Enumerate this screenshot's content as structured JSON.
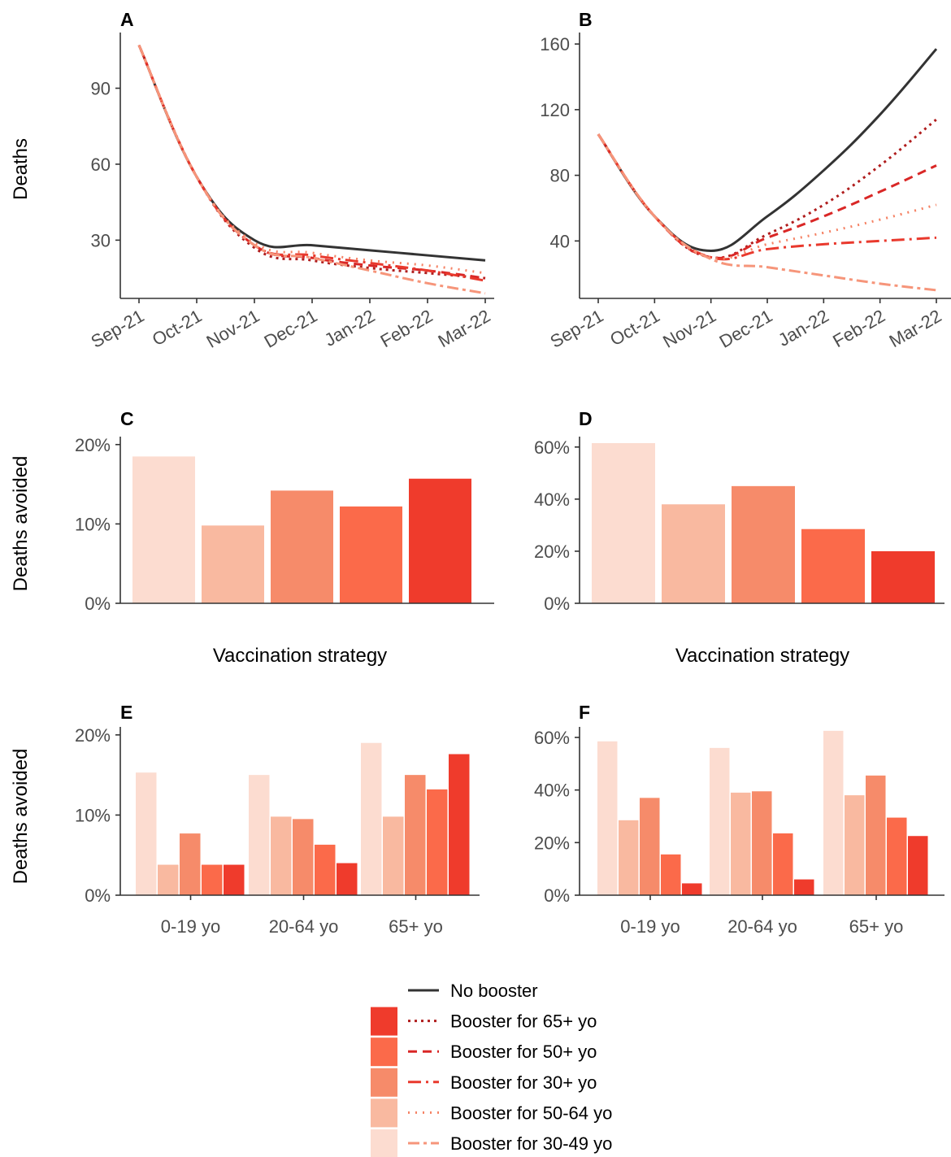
{
  "colors": {
    "no_booster": "#333333",
    "booster_65plus": "#ef3b2c",
    "booster_50plus": "#fb6a4a",
    "booster_30plus": "#f68b6a",
    "booster_50_64": "#f9b9a0",
    "booster_30_49": "#fcdcd0",
    "line_65plus": "#b01d1d",
    "line_50plus": "#d92726",
    "line_30plus": "#e9392d",
    "line_50_64": "#f58264",
    "line_30_49": "#f6957a",
    "axis": "#333333",
    "tick_text": "#4d4d4d"
  },
  "figure": {
    "panel_letters": [
      "A",
      "B",
      "C",
      "D",
      "E",
      "F"
    ],
    "y_title_deaths": "Deaths",
    "y_title_avoided": "Deaths avoided",
    "x_title_strategy": "Vaccination strategy"
  },
  "legend": {
    "items": [
      {
        "label": "No booster",
        "line": "solid",
        "color_key": "no_booster",
        "swatch_key": ""
      },
      {
        "label": "Booster for 65+ yo",
        "line": "dotted",
        "color_key": "line_65plus",
        "swatch_key": "booster_65plus"
      },
      {
        "label": "Booster for 50+ yo",
        "line": "dashed",
        "color_key": "line_50plus",
        "swatch_key": "booster_50plus"
      },
      {
        "label": "Booster for 30+ yo",
        "line": "longdash",
        "color_key": "line_30plus",
        "swatch_key": "booster_30plus"
      },
      {
        "label": "Booster for 50-64 yo",
        "line": "dots",
        "color_key": "line_50_64",
        "swatch_key": "booster_50_64"
      },
      {
        "label": "Booster for 30-49 yo",
        "line": "dotdash",
        "color_key": "line_30_49",
        "swatch_key": "booster_30_49"
      }
    ]
  },
  "chart_data": [
    {
      "panel": "A",
      "type": "line",
      "ylabel": "Deaths",
      "x": [
        "Sep-21",
        "Oct-21",
        "Nov-21",
        "Dec-21",
        "Jan-22",
        "Feb-22",
        "Mar-22"
      ],
      "xticks": [
        "Sep-21",
        "Oct-21",
        "Nov-21",
        "Dec-21",
        "Jan-22",
        "Feb-22",
        "Mar-22"
      ],
      "yticks": [
        30,
        60,
        90
      ],
      "ylim": [
        7,
        112
      ],
      "series": [
        {
          "name": "No booster",
          "values": [
            107,
            55,
            30,
            28,
            26,
            24,
            22
          ]
        },
        {
          "name": "Booster for 65+ yo",
          "values": [
            107,
            55,
            27,
            22,
            19,
            17,
            15
          ]
        },
        {
          "name": "Booster for 50+ yo",
          "values": [
            107,
            55,
            28,
            23,
            20,
            18,
            15
          ]
        },
        {
          "name": "Booster for 30+ yo",
          "values": [
            107,
            55,
            28,
            24,
            21,
            18,
            14
          ]
        },
        {
          "name": "Booster for 50-64 yo",
          "values": [
            107,
            55,
            29,
            25,
            22,
            20,
            17
          ]
        },
        {
          "name": "Booster for 30-49 yo",
          "values": [
            107,
            55,
            28,
            23,
            18,
            13,
            9
          ]
        }
      ]
    },
    {
      "panel": "B",
      "type": "line",
      "ylabel": "",
      "x": [
        "Sep-21",
        "Oct-21",
        "Nov-21",
        "Dec-21",
        "Jan-22",
        "Feb-22",
        "Mar-22"
      ],
      "xticks": [
        "Sep-21",
        "Oct-21",
        "Nov-21",
        "Dec-21",
        "Jan-22",
        "Feb-22",
        "Mar-22"
      ],
      "yticks": [
        40,
        80,
        120,
        160
      ],
      "ylim": [
        5,
        167
      ],
      "series": [
        {
          "name": "No booster",
          "values": [
            105,
            55,
            34,
            55,
            83,
            117,
            157
          ]
        },
        {
          "name": "Booster for 65+ yo",
          "values": [
            105,
            55,
            30,
            44,
            62,
            86,
            114
          ]
        },
        {
          "name": "Booster for 50+ yo",
          "values": [
            105,
            55,
            30,
            42,
            55,
            70,
            86
          ]
        },
        {
          "name": "Booster for 30+ yo",
          "values": [
            105,
            55,
            30,
            35,
            38,
            40,
            42
          ]
        },
        {
          "name": "Booster for 50-64 yo",
          "values": [
            105,
            55,
            30,
            38,
            45,
            53,
            62
          ]
        },
        {
          "name": "Booster for 30-49 yo",
          "values": [
            105,
            55,
            29,
            24,
            19,
            14,
            10
          ]
        }
      ]
    },
    {
      "panel": "C",
      "type": "bar",
      "ylabel": "Deaths avoided",
      "xlabel": "Vaccination strategy",
      "categories": [
        "Booster for 30-49 yo",
        "Booster for 50-64 yo",
        "Booster for 30+ yo",
        "Booster for 50+ yo",
        "Booster for 65+ yo"
      ],
      "values": [
        18.5,
        9.8,
        14.2,
        12.2,
        15.7
      ],
      "yticks": [
        "0%",
        "10%",
        "20%"
      ],
      "ylim": [
        0,
        21
      ]
    },
    {
      "panel": "D",
      "type": "bar",
      "ylabel": "",
      "xlabel": "Vaccination strategy",
      "categories": [
        "Booster for 30-49 yo",
        "Booster for 50-64 yo",
        "Booster for 30+ yo",
        "Booster for 50+ yo",
        "Booster for 65+ yo"
      ],
      "values": [
        61.5,
        38,
        45,
        28.5,
        20
      ],
      "yticks": [
        "0%",
        "20%",
        "40%",
        "60%"
      ],
      "ylim": [
        0,
        64
      ]
    },
    {
      "panel": "E",
      "type": "bar",
      "ylabel": "Deaths avoided",
      "categories": [
        "0-19 yo",
        "20-64 yo",
        "65+ yo"
      ],
      "series": [
        {
          "name": "Booster for 30-49 yo",
          "values": [
            15.3,
            15.0,
            19.0
          ]
        },
        {
          "name": "Booster for 50-64 yo",
          "values": [
            3.8,
            9.8,
            9.8
          ]
        },
        {
          "name": "Booster for 30+ yo",
          "values": [
            7.7,
            9.5,
            15.0
          ]
        },
        {
          "name": "Booster for 50+ yo",
          "values": [
            3.8,
            6.3,
            13.2
          ]
        },
        {
          "name": "Booster for 65+ yo",
          "values": [
            3.8,
            4.0,
            17.6
          ]
        }
      ],
      "yticks": [
        "0%",
        "10%",
        "20%"
      ],
      "ylim": [
        0,
        21
      ]
    },
    {
      "panel": "F",
      "type": "bar",
      "ylabel": "",
      "categories": [
        "0-19 yo",
        "20-64 yo",
        "65+ yo"
      ],
      "series": [
        {
          "name": "Booster for 30-49 yo",
          "values": [
            58.5,
            56,
            62.5
          ]
        },
        {
          "name": "Booster for 50-64 yo",
          "values": [
            28.5,
            39,
            38
          ]
        },
        {
          "name": "Booster for 30+ yo",
          "values": [
            37,
            39.5,
            45.5
          ]
        },
        {
          "name": "Booster for 50+ yo",
          "values": [
            15.5,
            23.5,
            29.5
          ]
        },
        {
          "name": "Booster for 65+ yo",
          "values": [
            4.5,
            6,
            22.5
          ]
        }
      ],
      "yticks": [
        "0%",
        "20%",
        "40%",
        "60%"
      ],
      "ylim": [
        0,
        64
      ]
    }
  ]
}
